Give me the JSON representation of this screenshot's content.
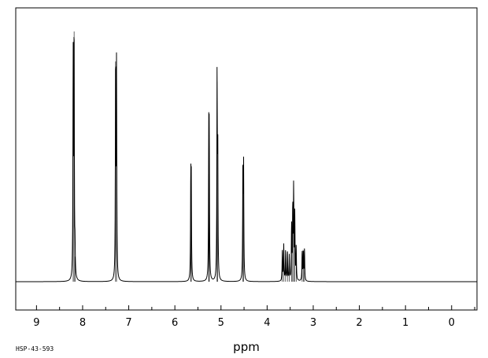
{
  "chart_data": {
    "type": "line",
    "title": "",
    "xlabel": "ppm",
    "ylabel": "",
    "sample_code": "HSP-43-593",
    "x_reversed": true,
    "xlim": [
      9.45,
      -0.55
    ],
    "ylim": [
      -0.1,
      1.0
    ],
    "grid": false,
    "x_ticks": [
      9,
      8,
      7,
      6,
      5,
      4,
      3,
      2,
      1,
      0
    ],
    "x_tick_labels": [
      "9",
      "8",
      "7",
      "6",
      "5",
      "4",
      "3",
      "2",
      "1",
      "0"
    ],
    "peaks": [
      {
        "shift": 8.205,
        "intensity": 0.88
      },
      {
        "shift": 8.185,
        "intensity": 1.0
      },
      {
        "shift": 8.165,
        "intensity": 0.1
      },
      {
        "shift": 7.285,
        "intensity": 0.88
      },
      {
        "shift": 7.265,
        "intensity": 0.85
      },
      {
        "shift": 5.655,
        "intensity": 0.375
      },
      {
        "shift": 5.645,
        "intensity": 0.37
      },
      {
        "shift": 5.265,
        "intensity": 0.535
      },
      {
        "shift": 5.255,
        "intensity": 0.52
      },
      {
        "shift": 5.085,
        "intensity": 0.8
      },
      {
        "shift": 5.07,
        "intensity": 0.52
      },
      {
        "shift": 4.525,
        "intensity": 0.45
      },
      {
        "shift": 4.51,
        "intensity": 0.44
      },
      {
        "shift": 3.67,
        "intensity": 0.12
      },
      {
        "shift": 3.64,
        "intensity": 0.145
      },
      {
        "shift": 3.6,
        "intensity": 0.12
      },
      {
        "shift": 3.56,
        "intensity": 0.12
      },
      {
        "shift": 3.52,
        "intensity": 0.1
      },
      {
        "shift": 3.47,
        "intensity": 0.22
      },
      {
        "shift": 3.445,
        "intensity": 0.29
      },
      {
        "shift": 3.425,
        "intensity": 0.37
      },
      {
        "shift": 3.4,
        "intensity": 0.26
      },
      {
        "shift": 3.37,
        "intensity": 0.13
      },
      {
        "shift": 3.24,
        "intensity": 0.12
      },
      {
        "shift": 3.215,
        "intensity": 0.12
      },
      {
        "shift": 3.19,
        "intensity": 0.13
      }
    ]
  }
}
